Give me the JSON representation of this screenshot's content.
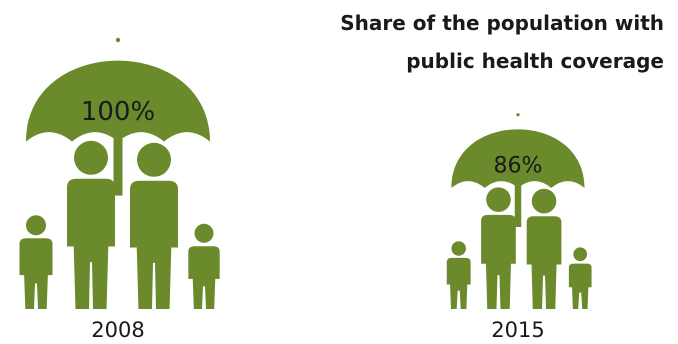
{
  "chart_data": {
    "type": "pictograph",
    "title_lines": [
      "Share of the population with",
      "public health coverage"
    ],
    "categories": [
      "2008",
      "2015"
    ],
    "values": [
      100,
      86
    ],
    "value_labels": [
      "100%",
      "86%"
    ],
    "unit": "%",
    "colors": {
      "figure": "#6b8a2c",
      "text": "#1a1a1a",
      "background": "#ffffff"
    }
  }
}
